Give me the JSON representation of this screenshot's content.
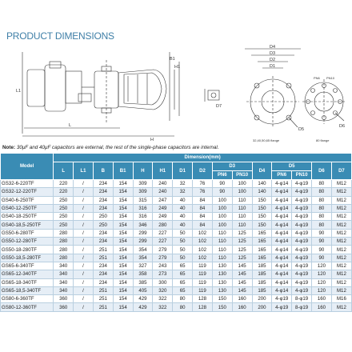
{
  "title": "PRODUCT DIMENSIONS",
  "drawing_labels": {
    "L": "L",
    "L1": "L1",
    "H": "H",
    "H1": "H1",
    "B": "B",
    "B1": "B1",
    "D1": "D1",
    "D2": "D2",
    "D3": "D3",
    "D4": "D4",
    "D5": "D5",
    "D6": "D6",
    "D7": "D7",
    "flange_left": "32,40,50,65 flange",
    "flange_right": "80 flange",
    "pn6": "PN6",
    "pn10": "PN10"
  },
  "note": {
    "prefix": "Note:",
    "text": " 30μF and 40μF capacitors are external, the rest of the single-phase capacitors are internal."
  },
  "table": {
    "header": {
      "model": "Model",
      "dimension": "Dimension(mm)",
      "L": "L",
      "L1": "L1",
      "B": "B",
      "B1": "B1",
      "H": "H",
      "H1": "H1",
      "D1": "D1",
      "D2": "D2",
      "D3": "D3",
      "D4": "D4",
      "D5": "D5",
      "D6": "D6",
      "D7": "D7",
      "PN6": "PN6",
      "PN10": "PN10"
    },
    "rows": [
      [
        "GS32-6-220TF",
        "220",
        "/",
        "234",
        "154",
        "309",
        "240",
        "32",
        "76",
        "90",
        "100",
        "140",
        "4-φ14",
        "4-φ19",
        "80",
        "M12"
      ],
      [
        "GS32-12-220TF",
        "220",
        "/",
        "234",
        "154",
        "309",
        "240",
        "32",
        "76",
        "90",
        "100",
        "140",
        "4-φ14",
        "4-φ19",
        "80",
        "M12"
      ],
      [
        "GS40-6-250TF",
        "250",
        "/",
        "234",
        "154",
        "315",
        "247",
        "40",
        "84",
        "100",
        "110",
        "150",
        "4-φ14",
        "4-φ19",
        "80",
        "M12"
      ],
      [
        "GS40-12-250TF",
        "250",
        "/",
        "234",
        "154",
        "316",
        "249",
        "40",
        "84",
        "100",
        "110",
        "150",
        "4-φ14",
        "4-φ19",
        "80",
        "M12"
      ],
      [
        "GS40-18-250TF",
        "250",
        "/",
        "250",
        "154",
        "316",
        "249",
        "40",
        "84",
        "100",
        "110",
        "150",
        "4-φ14",
        "4-φ19",
        "80",
        "M12"
      ],
      [
        "GS40-18,5-250TF",
        "250",
        "/",
        "250",
        "154",
        "346",
        "280",
        "40",
        "84",
        "100",
        "110",
        "150",
        "4-φ14",
        "4-φ19",
        "80",
        "M12"
      ],
      [
        "GS50-6-280TF",
        "280",
        "/",
        "234",
        "154",
        "299",
        "227",
        "50",
        "102",
        "110",
        "125",
        "165",
        "4-φ14",
        "4-φ19",
        "90",
        "M12"
      ],
      [
        "GS50-12-280TF",
        "280",
        "/",
        "234",
        "154",
        "299",
        "227",
        "50",
        "102",
        "110",
        "125",
        "165",
        "4-φ14",
        "4-φ19",
        "90",
        "M12"
      ],
      [
        "GS50-18-280TF",
        "280",
        "/",
        "251",
        "154",
        "354",
        "279",
        "50",
        "102",
        "110",
        "125",
        "165",
        "4-φ14",
        "4-φ19",
        "90",
        "M12"
      ],
      [
        "GS50-18,5-280TF",
        "280",
        "/",
        "251",
        "154",
        "354",
        "279",
        "50",
        "102",
        "110",
        "125",
        "165",
        "4-φ14",
        "4-φ19",
        "90",
        "M12"
      ],
      [
        "GS65-6-340TF",
        "340",
        "/",
        "234",
        "154",
        "327",
        "243",
        "65",
        "119",
        "130",
        "145",
        "185",
        "4-φ14",
        "4-φ19",
        "120",
        "M12"
      ],
      [
        "GS65-12-340TF",
        "340",
        "/",
        "234",
        "154",
        "358",
        "273",
        "65",
        "119",
        "130",
        "145",
        "185",
        "4-φ14",
        "4-φ19",
        "120",
        "M12"
      ],
      [
        "GS65-18-340TF",
        "340",
        "/",
        "234",
        "154",
        "385",
        "300",
        "65",
        "119",
        "130",
        "145",
        "185",
        "4-φ14",
        "4-φ19",
        "120",
        "M12"
      ],
      [
        "GS65-18,5-340TF",
        "340",
        "/",
        "251",
        "154",
        "405",
        "320",
        "65",
        "119",
        "130",
        "145",
        "185",
        "4-φ14",
        "4-φ19",
        "120",
        "M12"
      ],
      [
        "GS80-6-360TF",
        "360",
        "/",
        "251",
        "154",
        "429",
        "322",
        "80",
        "128",
        "150",
        "160",
        "200",
        "4-φ19",
        "8-φ19",
        "160",
        "M16"
      ],
      [
        "GS80-12-360TF",
        "360",
        "/",
        "251",
        "154",
        "429",
        "322",
        "80",
        "128",
        "150",
        "160",
        "200",
        "4-φ19",
        "8-φ19",
        "160",
        "M12"
      ]
    ]
  }
}
